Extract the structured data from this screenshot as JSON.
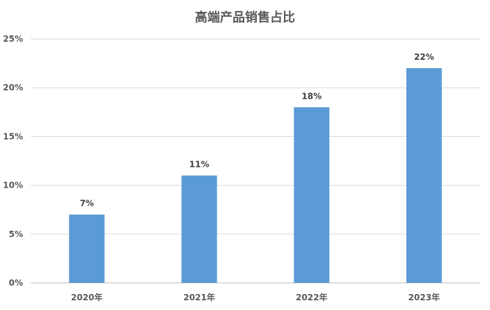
{
  "chart_data": {
    "type": "bar",
    "title": "高端产品销售占比",
    "categories": [
      "2020年",
      "2021年",
      "2022年",
      "2023年"
    ],
    "values": [
      7,
      11,
      18,
      22
    ],
    "value_labels": [
      "7%",
      "11%",
      "18%",
      "22%"
    ],
    "y_ticks": [
      0,
      5,
      10,
      15,
      20,
      25
    ],
    "y_tick_labels": [
      "0%",
      "5%",
      "10%",
      "15%",
      "20%",
      "25%"
    ],
    "ylim": [
      0,
      25
    ],
    "xlabel": "",
    "ylabel": "",
    "grid": true,
    "legend": false,
    "bar_color": "#5b9bd5",
    "grid_color": "#d9d9d9"
  }
}
